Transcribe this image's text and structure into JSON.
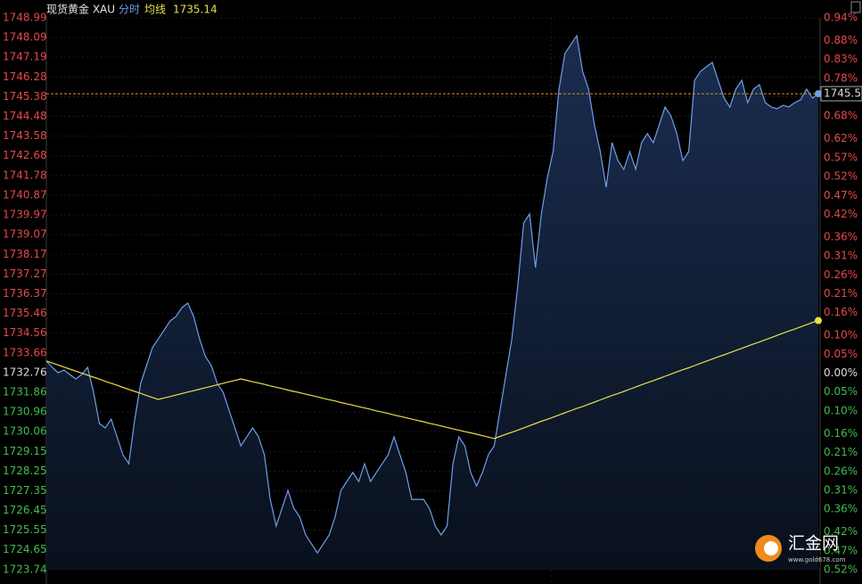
{
  "chart_data": {
    "type": "line",
    "title": "现货黄金 XAU",
    "ylim": [
      1723.74,
      1748.99
    ],
    "yticks": [
      1748.99,
      1748.09,
      1747.19,
      1746.28,
      1745.38,
      1744.48,
      1743.58,
      1742.68,
      1741.78,
      1740.87,
      1739.97,
      1739.07,
      1738.17,
      1737.27,
      1736.37,
      1735.46,
      1734.56,
      1733.66,
      1732.76,
      1731.86,
      1730.96,
      1730.06,
      1729.15,
      1728.25,
      1727.35,
      1726.45,
      1725.55,
      1724.65,
      1723.74
    ],
    "y2lim": [
      -0.52,
      0.94
    ],
    "y2ticks": [
      {
        "value": 0.94,
        "label": "0.94%"
      },
      {
        "value": 0.88,
        "label": "0.88%"
      },
      {
        "value": 0.83,
        "label": "0.83%"
      },
      {
        "value": 0.78,
        "label": "0.78%"
      },
      {
        "value": 0.73,
        "label": "0.73%"
      },
      {
        "value": 0.68,
        "label": "0.68%"
      },
      {
        "value": 0.62,
        "label": "0.62%"
      },
      {
        "value": 0.57,
        "label": "0.57%"
      },
      {
        "value": 0.52,
        "label": "0.52%"
      },
      {
        "value": 0.47,
        "label": "0.47%"
      },
      {
        "value": 0.42,
        "label": "0.42%"
      },
      {
        "value": 0.36,
        "label": "0.36%"
      },
      {
        "value": 0.31,
        "label": "0.31%"
      },
      {
        "value": 0.26,
        "label": "0.26%"
      },
      {
        "value": 0.21,
        "label": "0.21%"
      },
      {
        "value": 0.16,
        "label": "0.16%"
      },
      {
        "value": 0.1,
        "label": "0.10%"
      },
      {
        "value": 0.05,
        "label": "0.05%"
      },
      {
        "value": 0,
        "label": "0.00%"
      },
      {
        "value": -0.05,
        "label": "0.05%"
      },
      {
        "value": -0.1,
        "label": "0.10%"
      },
      {
        "value": -0.16,
        "label": "0.16%"
      },
      {
        "value": -0.21,
        "label": "0.21%"
      },
      {
        "value": -0.26,
        "label": "0.26%"
      },
      {
        "value": -0.31,
        "label": "0.31%"
      },
      {
        "value": -0.36,
        "label": "0.36%"
      },
      {
        "value": -0.42,
        "label": "0.42%"
      },
      {
        "value": -0.47,
        "label": "0.47%"
      },
      {
        "value": -0.52,
        "label": "0.52%"
      }
    ],
    "up_color": "#e8474c",
    "down_color": "#3fbf4c",
    "flat_color": "#dddddd",
    "grid": true,
    "series": [
      {
        "name": "分时",
        "color": "#6f9eea",
        "values": [
          1733.29,
          1733.0,
          1732.75,
          1732.88,
          1732.67,
          1732.47,
          1732.67,
          1733.0,
          1731.86,
          1730.43,
          1730.23,
          1730.63,
          1729.82,
          1729.0,
          1728.59,
          1730.63,
          1732.27,
          1733.08,
          1733.9,
          1734.3,
          1734.71,
          1735.12,
          1735.32,
          1735.73,
          1735.94,
          1735.32,
          1734.3,
          1733.49,
          1733.08,
          1732.27,
          1731.86,
          1731.04,
          1730.23,
          1729.41,
          1729.82,
          1730.23,
          1729.82,
          1729.0,
          1726.96,
          1725.74,
          1726.55,
          1727.37,
          1726.55,
          1726.15,
          1725.33,
          1724.92,
          1724.51,
          1724.92,
          1725.33,
          1726.15,
          1727.37,
          1727.78,
          1728.19,
          1727.78,
          1728.59,
          1727.78,
          1728.19,
          1728.59,
          1729.0,
          1729.82,
          1729.0,
          1728.19,
          1726.96,
          1726.96,
          1726.96,
          1726.55,
          1725.74,
          1725.33,
          1725.74,
          1728.59,
          1729.82,
          1729.41,
          1728.19,
          1727.57,
          1728.19,
          1729.0,
          1729.41,
          1731.04,
          1732.67,
          1734.3,
          1736.75,
          1739.61,
          1740.02,
          1737.57,
          1740.02,
          1741.65,
          1742.87,
          1745.73,
          1747.36,
          1747.77,
          1748.17,
          1746.54,
          1745.73,
          1744.1,
          1742.87,
          1741.24,
          1743.28,
          1742.46,
          1742.06,
          1742.87,
          1742.06,
          1743.28,
          1743.69,
          1743.28,
          1744.1,
          1744.91,
          1744.5,
          1743.69,
          1742.46,
          1742.87,
          1746.13,
          1746.54,
          1746.75,
          1746.95,
          1746.13,
          1745.32,
          1744.91,
          1745.73,
          1746.13,
          1745.11,
          1745.73,
          1745.93,
          1745.11,
          1744.91,
          1744.83,
          1744.99,
          1744.91,
          1745.11,
          1745.24,
          1745.73,
          1745.32,
          1745.52
        ]
      },
      {
        "name": "均线",
        "color": "#e8e04a",
        "values": [
          1733.29,
          1733.2,
          1733.11,
          1733.01,
          1732.92,
          1732.83,
          1732.73,
          1732.64,
          1732.55,
          1732.46,
          1732.36,
          1732.27,
          1732.18,
          1732.08,
          1731.99,
          1731.9,
          1731.81,
          1731.71,
          1731.62,
          1731.53,
          1731.6,
          1731.66,
          1731.73,
          1731.8,
          1731.87,
          1731.93,
          1732.0,
          1732.07,
          1732.13,
          1732.2,
          1732.27,
          1732.34,
          1732.4,
          1732.47,
          1732.41,
          1732.34,
          1732.28,
          1732.22,
          1732.15,
          1732.09,
          1732.03,
          1731.96,
          1731.9,
          1731.84,
          1731.77,
          1731.71,
          1731.65,
          1731.58,
          1731.52,
          1731.46,
          1731.39,
          1731.33,
          1731.27,
          1731.2,
          1731.14,
          1731.08,
          1731.01,
          1730.95,
          1730.89,
          1730.82,
          1730.76,
          1730.7,
          1730.63,
          1730.57,
          1730.51,
          1730.44,
          1730.38,
          1730.32,
          1730.25,
          1730.19,
          1730.13,
          1730.06,
          1730.0,
          1729.94,
          1729.87,
          1729.81,
          1729.74,
          1729.84,
          1729.94,
          1730.03,
          1730.13,
          1730.23,
          1730.33,
          1730.43,
          1730.53,
          1730.62,
          1730.72,
          1730.82,
          1730.92,
          1731.02,
          1731.12,
          1731.21,
          1731.31,
          1731.41,
          1731.51,
          1731.61,
          1731.71,
          1731.8,
          1731.9,
          1732.0,
          1732.1,
          1732.2,
          1732.3,
          1732.39,
          1732.49,
          1732.59,
          1732.69,
          1732.79,
          1732.89,
          1732.98,
          1733.08,
          1733.18,
          1733.28,
          1733.38,
          1733.48,
          1733.57,
          1733.67,
          1733.77,
          1733.87,
          1733.97,
          1734.07,
          1734.16,
          1734.26,
          1734.36,
          1734.46,
          1734.56,
          1734.66,
          1734.75,
          1734.85,
          1734.95,
          1735.05,
          1735.14
        ]
      }
    ],
    "last_line_color": "#e08a2c",
    "watermark": {
      "name": "汇金网",
      "url": "www.gold678.com"
    }
  }
}
